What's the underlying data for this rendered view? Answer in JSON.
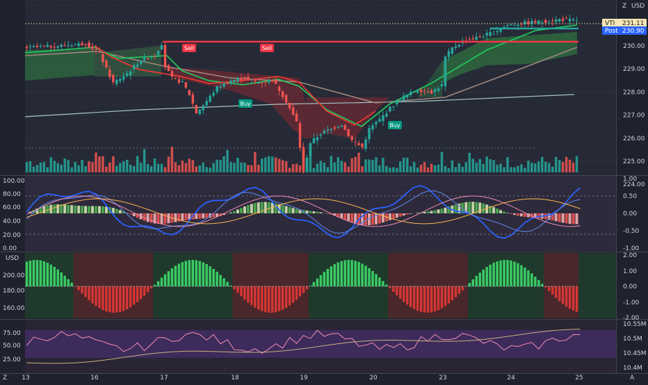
{
  "colors": {
    "bg": "#1e222d",
    "up": "#26a69a",
    "down": "#ef5350",
    "green": "#22c55e",
    "red": "#f23645",
    "cloud_green": "#2e6b3f",
    "cloud_red": "#6d2a33",
    "axis_text": "#d1d4dc",
    "price_badge": "#f5e6b3",
    "post_badge": "#2962ff"
  },
  "price_axis": {
    "currency": "USD",
    "ticks": [
      "230.00",
      "229.00",
      "228.00",
      "227.00",
      "226.00",
      "225.00",
      "224.00"
    ],
    "symbol": "VTI",
    "last_price": "231.11",
    "post_label": "Post",
    "post_price": "230.90"
  },
  "signals": [
    {
      "label": "Sell",
      "kind": "sell"
    },
    {
      "label": "Sell",
      "kind": "sell"
    },
    {
      "label": "Buy",
      "kind": "buy"
    },
    {
      "label": "Buy",
      "kind": "buy"
    }
  ],
  "osc1": {
    "left_ticks": [
      "100.00",
      "80.00",
      "60.00",
      "40.00",
      "20.00",
      "0.00"
    ],
    "right_ticks": [
      "1.00",
      "0.50",
      "0.00",
      "-0.50",
      "-1.00"
    ]
  },
  "osc2": {
    "currency": "USD",
    "left_ticks": [
      "200.00",
      "180.00",
      "160.00"
    ],
    "right_ticks": [
      "2.00",
      "1.00",
      "0.00",
      "-1.00",
      "-2.00"
    ]
  },
  "osc3": {
    "left_ticks": [
      "75.00",
      "50.00",
      "25.00"
    ],
    "right_ticks": [
      "10.55M",
      "10.5M",
      "10.45M",
      "10.4M"
    ]
  },
  "time_axis": {
    "ticks": [
      "13",
      "16",
      "17",
      "18",
      "19",
      "20",
      "23",
      "24",
      "25"
    ],
    "left_label": "Z",
    "right_label": "A"
  }
}
